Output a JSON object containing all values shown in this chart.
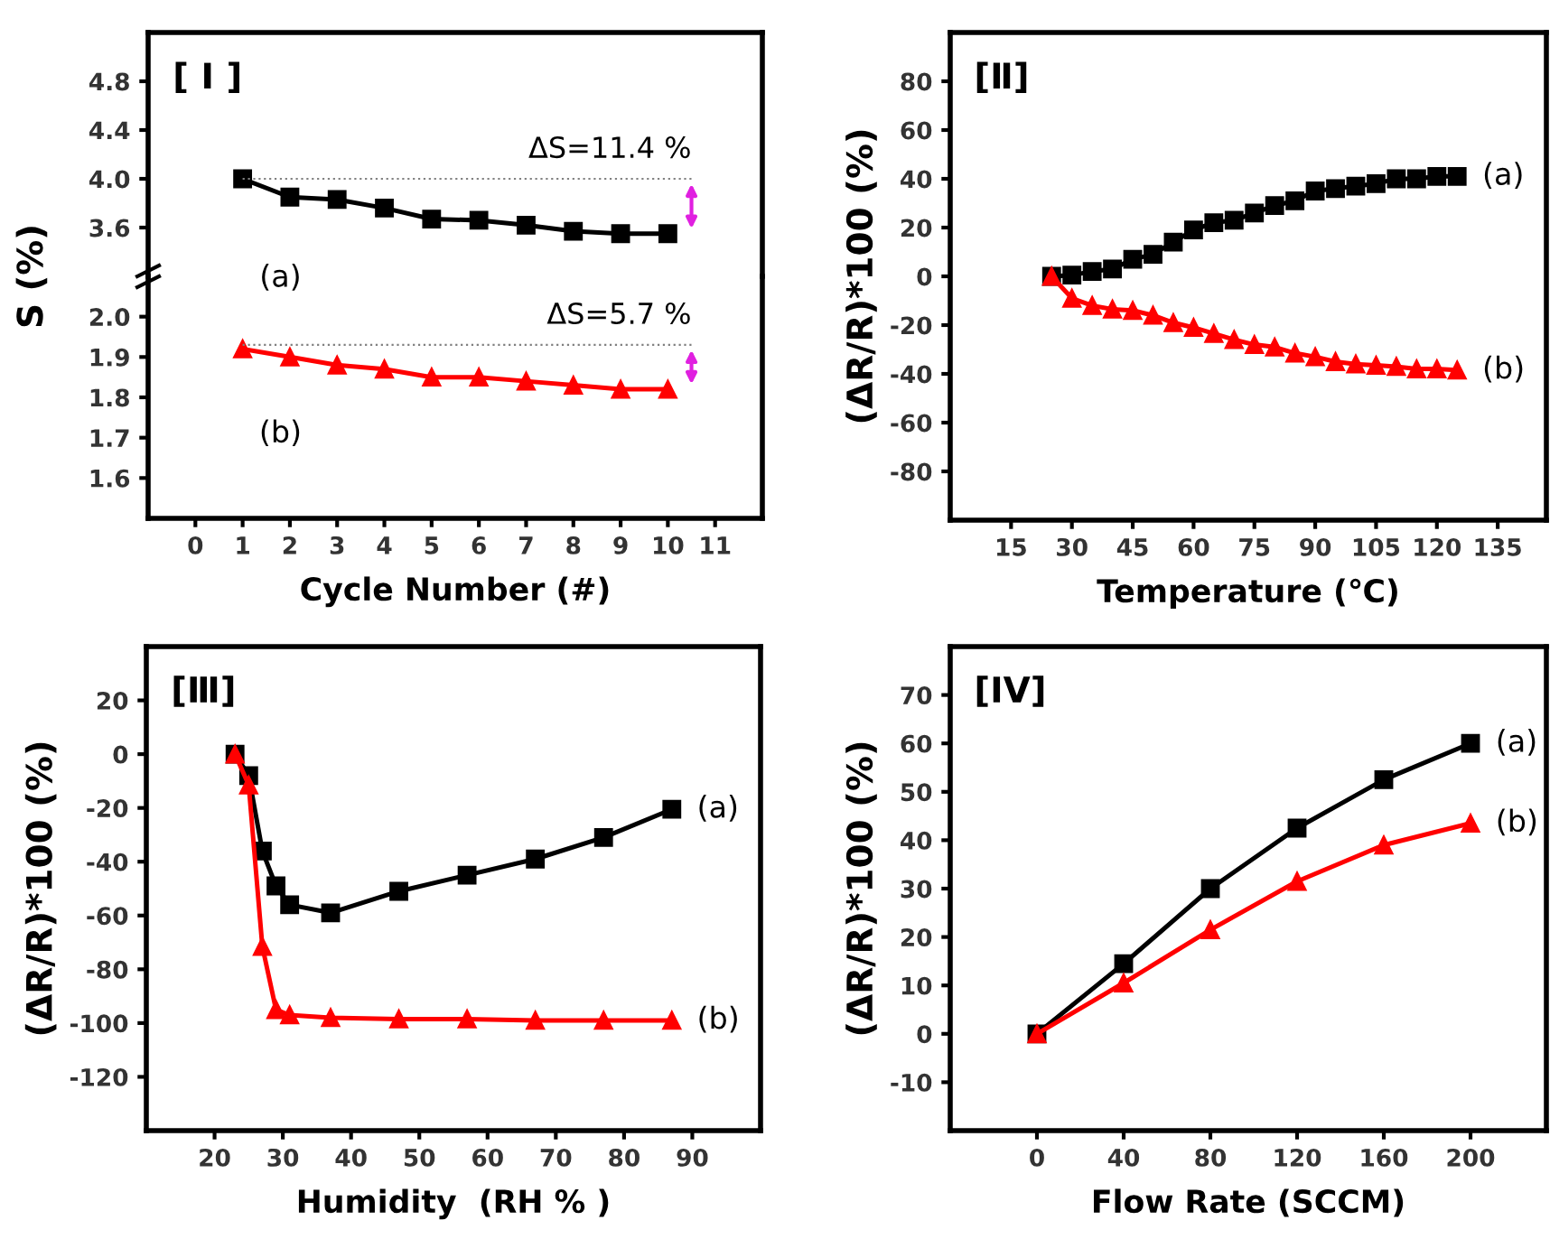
{
  "chart_data": [
    {
      "type": "line",
      "title": "[ I ]",
      "xlim": [
        -1,
        12
      ],
      "xticks": [
        0,
        1,
        2,
        3,
        4,
        5,
        6,
        7,
        8,
        9,
        10,
        11
      ],
      "ylim": [
        3.2,
        5.2
      ],
      "yticks": [
        3.6,
        {
          "value": 4,
          "label": "4.0"
        },
        4.4,
        4.8
      ],
      "tick_labels": "y",
      "grid": false,
      "legend": false,
      "annotations": [
        {
          "text": "ΔS=11.4 %",
          "x": 10.5,
          "y": 4.0
        }
      ],
      "series": [
        {
          "name": "(a)",
          "color": "#000000",
          "marker": "square",
          "x": [
            1,
            2,
            3,
            4,
            5,
            6,
            7,
            8,
            9,
            10
          ],
          "values": [
            4.0,
            3.85,
            3.83,
            3.76,
            3.67,
            3.66,
            3.62,
            3.57,
            3.55,
            3.55
          ]
        },
        {
          "type": "line",
          "color": "#808080",
          "marker": "none",
          "line_style": "dotted",
          "x": [
            1,
            10.5
          ],
          "values": [
            4.0,
            4.0
          ]
        }
      ]
    },
    {
      "type": "line",
      "xlabel": "Cycle Number (#)",
      "ylabel": "S (%)",
      "xlim": [
        -1,
        12
      ],
      "xticks": [
        0,
        1,
        2,
        3,
        4,
        5,
        6,
        7,
        8,
        9,
        10,
        11
      ],
      "ylim": [
        1.5,
        2.1
      ],
      "yticks": [
        1.6,
        1.7,
        1.8,
        1.9,
        {
          "value": 2,
          "label": "2.0"
        }
      ],
      "grid": false,
      "legend": false,
      "annotations": [
        {
          "text": "ΔS=5.7 %",
          "x": 10.5,
          "y": 1.93
        }
      ],
      "series": [
        {
          "name": "(b)",
          "color": "#ff0000",
          "marker": "triangle",
          "x": [
            1,
            2,
            3,
            4,
            5,
            6,
            7,
            8,
            9,
            10
          ],
          "values": [
            1.92,
            1.9,
            1.88,
            1.87,
            1.85,
            1.85,
            1.84,
            1.83,
            1.82,
            1.82
          ]
        },
        {
          "type": "line",
          "color": "#808080",
          "marker": "none",
          "line_style": "dotted",
          "x": [
            1,
            10.5
          ],
          "values": [
            1.93,
            1.93
          ]
        }
      ]
    },
    {
      "type": "line",
      "title": "[Ⅱ]",
      "xlabel": "Temperature (℃)",
      "ylabel": "(ΔR/R)*100 (%)",
      "xlim": [
        0,
        147
      ],
      "xticks": [
        15,
        30,
        45,
        60,
        75,
        90,
        105,
        120,
        135
      ],
      "ylim": [
        -100,
        100
      ],
      "yticks": [
        -80,
        -60,
        -40,
        -20,
        0,
        20,
        40,
        60,
        80
      ],
      "grid": false,
      "legend": false,
      "series": [
        {
          "name": "(a)",
          "color": "#000000",
          "marker": "square",
          "x": [
            25,
            30,
            35,
            40,
            45,
            50,
            55,
            60,
            65,
            70,
            75,
            80,
            85,
            90,
            95,
            100,
            105,
            110,
            115,
            120,
            125
          ],
          "values": [
            0,
            0.5,
            2,
            3,
            7,
            9,
            14,
            19,
            22,
            23,
            26,
            29,
            31,
            35,
            36,
            37,
            38,
            40,
            40,
            41,
            41
          ]
        },
        {
          "name": "(b)",
          "color": "#ff0000",
          "marker": "triangle",
          "x": [
            25,
            30,
            35,
            40,
            45,
            50,
            55,
            60,
            65,
            70,
            75,
            80,
            85,
            90,
            95,
            100,
            105,
            110,
            115,
            120,
            125
          ],
          "values": [
            0,
            -9,
            -12,
            -13.5,
            -14,
            -16,
            -19,
            -21,
            -23.5,
            -26,
            -28,
            -29,
            -31.5,
            -33,
            -35,
            -36,
            -36.5,
            -37,
            -38,
            -38,
            -38.5
          ]
        }
      ]
    },
    {
      "type": "line",
      "title": "[Ⅲ]",
      "xlabel": "Humidity  (RH % )",
      "ylabel": "(ΔR/R)*100 (%)",
      "xlim": [
        10,
        100
      ],
      "xticks": [
        20,
        30,
        40,
        50,
        60,
        70,
        80,
        90
      ],
      "ylim": [
        -140,
        40
      ],
      "yticks": [
        -120,
        -100,
        -80,
        -60,
        -40,
        -20,
        0,
        20
      ],
      "grid": false,
      "legend": false,
      "series": [
        {
          "name": "(a)",
          "color": "#000000",
          "marker": "square",
          "x": [
            23,
            25,
            27,
            29,
            31,
            37,
            47,
            57,
            67,
            77,
            87
          ],
          "values": [
            0,
            -8,
            -36,
            -49,
            -56,
            -59,
            -51,
            -45,
            -39,
            -31,
            -20.5
          ]
        },
        {
          "name": "(b)",
          "color": "#ff0000",
          "marker": "triangle",
          "x": [
            23,
            25,
            27,
            29,
            31,
            37,
            47,
            57,
            67,
            77,
            87
          ],
          "values": [
            0,
            -11.5,
            -71.5,
            -95,
            -97,
            -98,
            -98.5,
            -98.5,
            -99,
            -99,
            -99
          ]
        }
      ]
    },
    {
      "type": "line",
      "title": "[IV]",
      "xlabel": "Flow Rate (SCCM)",
      "ylabel": "(ΔR/R)*100 (%)",
      "xlim": [
        -40,
        235
      ],
      "xticks": [
        0,
        40,
        80,
        120,
        160,
        200
      ],
      "ylim": [
        -20,
        80
      ],
      "yticks": [
        -10,
        0,
        10,
        20,
        30,
        40,
        50,
        60,
        70
      ],
      "grid": false,
      "legend": false,
      "series": [
        {
          "name": "(a)",
          "color": "#000000",
          "marker": "square",
          "x": [
            0,
            40,
            80,
            120,
            160,
            200
          ],
          "values": [
            0,
            14.5,
            30,
            42.5,
            52.5,
            60
          ]
        },
        {
          "name": "(b)",
          "color": "#ff0000",
          "marker": "triangle",
          "x": [
            0,
            40,
            80,
            120,
            160,
            200
          ],
          "values": [
            0,
            10.5,
            21.5,
            31.5,
            39,
            43.5
          ]
        }
      ]
    }
  ]
}
